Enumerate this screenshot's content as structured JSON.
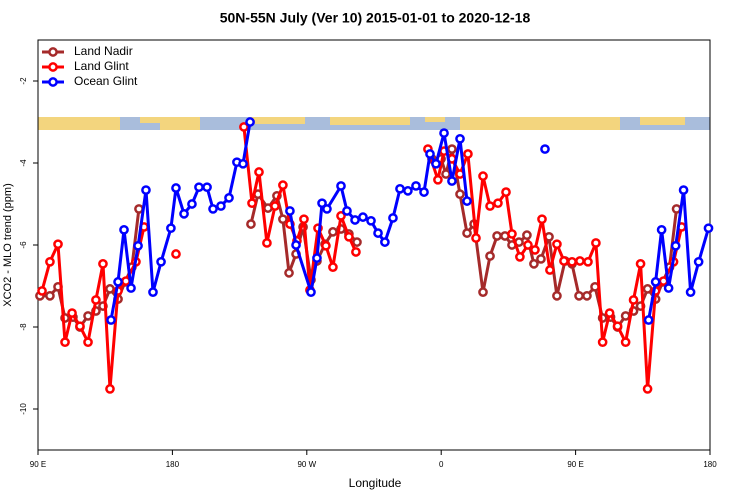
{
  "chart_data": {
    "type": "line",
    "title": "50N-55N July (Ver 10)   2015-01-01 to 2020-12-18",
    "x_label": "Longitude",
    "y_label": "XCO2 - MLO trend (ppm)",
    "legend": "upper left",
    "xlim": [
      90,
      540
    ],
    "ylim": [
      -11,
      -1
    ],
    "xticks": [
      {
        "value": 90,
        "label": "90 E"
      },
      180,
      {
        "value": 270,
        "label": "90 W"
      },
      {
        "value": 360,
        "label": "0"
      },
      {
        "value": 450,
        "label": "90 E"
      },
      {
        "value": 540,
        "label": "180"
      }
    ],
    "yticks": [
      -2,
      -4,
      -6,
      -8,
      -10
    ],
    "series": [
      {
        "name": "Land Nadir",
        "color": "#a52a2a",
        "x": [
          91.3,
          98,
          103.4,
          108.1,
          113.4,
          118.1,
          123.5,
          128.8,
          133.5,
          138.2,
          143.6,
          148.3,
          152.9,
          157.6,
          null,
          232.6,
          237.3,
          244,
          250,
          254,
          258.1,
          262.8,
          267.5,
          272.8,
          276.8,
          282.2,
          287.5,
          292.9,
          298.2,
          303.6,
          null,
          353.8,
          359.9,
          363.2,
          367.2,
          372.6,
          377.3,
          382,
          388,
          392.7,
          397.4,
          402.7,
          407.4,
          412.1,
          417.4,
          422.1,
          426.8,
          432.2,
          437.5,
          442.9,
          447.6,
          452.3,
          457.6,
          463,
          468.1,
          473.4,
          478.1,
          483.5,
          488.8,
          493.5,
          498.2,
          503.6,
          508.3,
          512.9,
          517.6
        ],
        "values": [
          -7.24,
          -7.24,
          -7.02,
          -7.78,
          -7.76,
          -8.0,
          -7.73,
          -7.61,
          -7.49,
          -7.07,
          -7.32,
          -6.9,
          -6.54,
          -5.12,
          null,
          -5.49,
          -4.76,
          -5.1,
          -4.8,
          -5.37,
          -6.68,
          -6.22,
          -5.56,
          -6.85,
          -6.39,
          -5.98,
          -5.68,
          -5.61,
          -5.73,
          -5.93,
          null,
          -3.9,
          -3.9,
          -4.27,
          -3.66,
          -4.76,
          -5.71,
          -5.49,
          -7.15,
          -6.27,
          -5.78,
          -5.78,
          -6.0,
          -5.93,
          -5.76,
          -6.46,
          -6.34,
          -5.8,
          -7.24,
          -6.39,
          -6.46,
          -7.24,
          -7.24,
          -7.02,
          -7.78,
          -7.76,
          -8.0,
          -7.73,
          -7.61,
          -7.49,
          -7.07,
          -7.32,
          -6.9,
          -6.54,
          -5.12
        ]
      },
      {
        "name": "Land Glint",
        "color": "#ff0000",
        "x": [
          92.7,
          98,
          103.4,
          108.1,
          112.8,
          118.1,
          123.5,
          128.8,
          133.5,
          138.2,
          143.6,
          148.9,
          155.6,
          161,
          null,
          182.4,
          null,
          227.9,
          233.3,
          238,
          243.3,
          248.7,
          254,
          258.7,
          263.4,
          268.1,
          272.1,
          277.5,
          282.8,
          287.5,
          292.9,
          298.2,
          302.9,
          null,
          351.1,
          357.8,
          361.9,
          367.2,
          372.6,
          377.9,
          383.3,
          388,
          392.7,
          398,
          403.4,
          407.4,
          412.7,
          418.1,
          422.8,
          427.5,
          432.8,
          437.5,
          442.2,
          447.6,
          452.9,
          458.3,
          463.6,
          468.1,
          472.8,
          478.1,
          483.5,
          488.8,
          493.5,
          498.2,
          503.6,
          508.9,
          515.6,
          521
        ],
        "values": [
          -7.12,
          -6.41,
          -5.98,
          -8.37,
          -7.66,
          -7.98,
          -8.37,
          -7.34,
          -6.46,
          -9.51,
          -7.12,
          -6.88,
          -6.41,
          -5.56,
          null,
          -6.22,
          null,
          -3.12,
          -4.98,
          -4.22,
          -5.95,
          -5.05,
          -4.54,
          -5.49,
          -5.9,
          -5.37,
          -7.1,
          -5.59,
          -6.02,
          -6.54,
          -5.29,
          -5.8,
          -6.17,
          null,
          -3.66,
          -4.41,
          -3.71,
          -3.9,
          -4.27,
          -3.78,
          -5.83,
          -4.32,
          -5.05,
          -4.98,
          -4.71,
          -5.73,
          -6.29,
          -6.0,
          -6.12,
          -5.37,
          -6.61,
          -5.98,
          -6.39,
          -6.41,
          -6.39,
          -6.41,
          -5.95,
          -8.37,
          -7.66,
          -7.98,
          -8.37,
          -7.34,
          -6.46,
          -9.51,
          -7.12,
          -6.88,
          -6.41,
          -5.56
        ]
      },
      {
        "name": "Ocean Glint",
        "color": "#0000ff",
        "x": [
          138.9,
          143.6,
          147.6,
          152.3,
          157,
          162.3,
          167,
          172.4,
          179,
          182.4,
          187.8,
          193.1,
          197.8,
          203.2,
          207.2,
          212.5,
          217.9,
          223.2,
          227.3,
          232,
          null,
          258.7,
          262.8,
          272.8,
          276.8,
          280.2,
          283.5,
          292.9,
          296.9,
          302.3,
          307.6,
          313,
          317.7,
          322.3,
          327.7,
          332.4,
          337.7,
          343.1,
          348.5,
          352.5,
          356.5,
          361.9,
          367.2,
          372.6,
          377.3,
          null,
          429.5,
          null,
          498.9,
          503.6,
          507.6,
          512.3,
          517,
          522.3,
          527,
          532.4,
          539
        ],
        "values": [
          -7.83,
          -6.9,
          -5.63,
          -7.05,
          -6.02,
          -4.66,
          -7.15,
          -6.41,
          -5.59,
          -4.61,
          -5.24,
          -5.0,
          -4.59,
          -4.59,
          -5.12,
          -5.05,
          -4.85,
          -3.98,
          -4.02,
          -3.0,
          null,
          -5.17,
          -6.0,
          -7.15,
          -6.32,
          -4.98,
          -5.12,
          -4.56,
          -5.17,
          -5.39,
          -5.32,
          -5.41,
          -5.71,
          -5.93,
          -5.34,
          -4.63,
          -4.68,
          -4.56,
          -4.71,
          -3.78,
          -4.02,
          -3.27,
          -4.44,
          -3.41,
          -4.93,
          null,
          -3.66,
          null,
          -7.83,
          -6.9,
          -5.63,
          -7.05,
          -6.02,
          -4.66,
          -7.15,
          -6.41,
          -5.59
        ]
      }
    ]
  }
}
